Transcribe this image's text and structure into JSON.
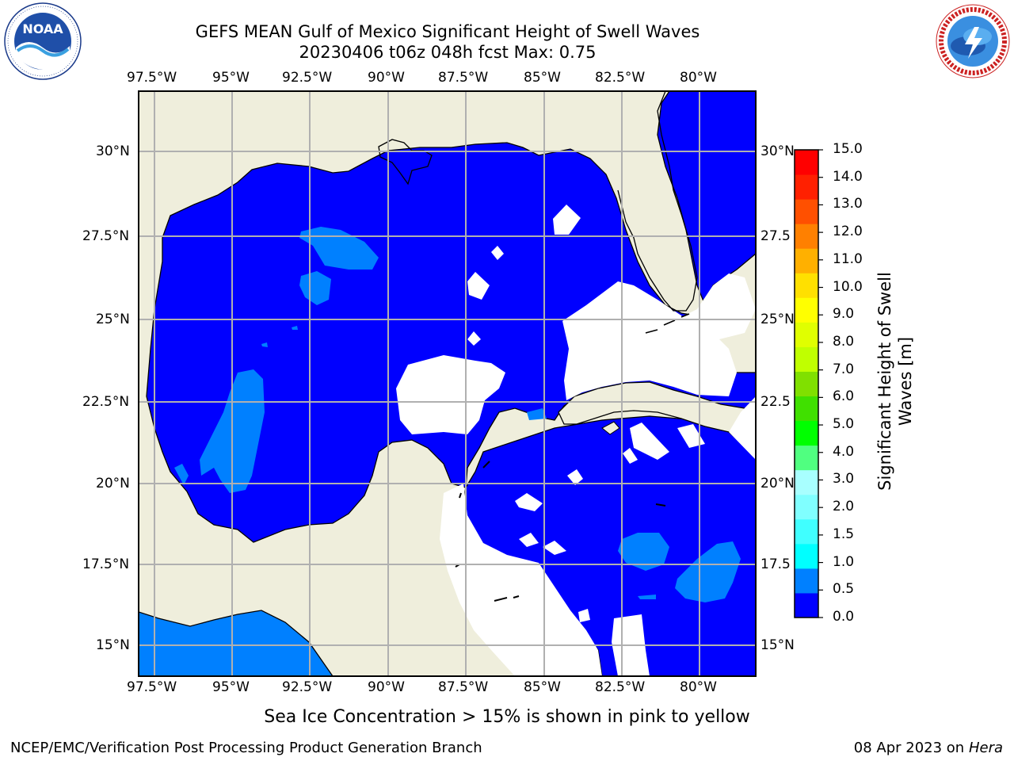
{
  "header": {
    "title_line1": "GEFS MEAN Gulf of Mexico Significant Height of Swell Waves",
    "title_line2": "20230406 t06z 048h fcst   Max: 0.75"
  },
  "logos": {
    "left": {
      "icon": "noaa-logo",
      "text": "NOAA",
      "ring_text": "NATIONAL OCEANIC AND ATMOSPHERIC ADMINISTRATION · U.S. DEPARTMENT OF COMMERCE"
    },
    "right": {
      "icon": "nws-logo",
      "ring_text": "NATIONAL WEATHER SERVICE"
    }
  },
  "map": {
    "lon_ticks": [
      "97.5°W",
      "95°W",
      "92.5°W",
      "90°W",
      "87.5°W",
      "85°W",
      "82.5°W",
      "80°W"
    ],
    "lat_ticks": [
      "30°N",
      "27.5°N",
      "25°N",
      "22.5°N",
      "20°N",
      "17.5°N",
      "15°N"
    ],
    "lat_ticks_right": [
      "30°N",
      "27.5",
      "25°N",
      "22.5",
      "20°N",
      "17.5",
      "15°N"
    ],
    "colors": {
      "land": "#efeedc",
      "water": "#0000ff",
      "swell_05_10": "#0080ff",
      "no_data": "#ffffff",
      "grid": "#b0b0b0"
    }
  },
  "colorbar": {
    "title": "Significant Height of Swell Waves [m]",
    "labels": [
      "15.0",
      "14.0",
      "13.0",
      "12.0",
      "11.0",
      "10.0",
      "9.0",
      "8.0",
      "7.0",
      "6.0",
      "5.0",
      "4.0",
      "3.0",
      "2.0",
      "1.5",
      "1.0",
      "0.5",
      "0.0"
    ],
    "colors_bottom_to_top": [
      "#0000ff",
      "#0080ff",
      "#00ffff",
      "#40ffff",
      "#80ffff",
      "#a8ffff",
      "#50ff80",
      "#00ff00",
      "#40e000",
      "#80e000",
      "#c0ff00",
      "#e0ff00",
      "#ffff00",
      "#ffe000",
      "#ffb000",
      "#ff8000",
      "#ff5000",
      "#ff2000",
      "#ff0000"
    ]
  },
  "footnote": "Sea Ice Concentration > 15% is shown in pink to yellow",
  "footer": {
    "left": "NCEP/EMC/Verification Post Processing Product Generation Branch",
    "right_date": "08 Apr 2023 on ",
    "right_host": "Hera"
  }
}
